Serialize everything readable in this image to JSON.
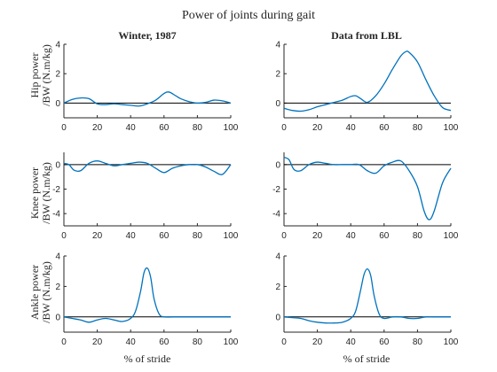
{
  "title": "Power of joints during gait",
  "columns": [
    "Winter, 1987",
    "Data from LBL"
  ],
  "ylabels": [
    [
      "Hip power",
      "/BW (N.m/kg)"
    ],
    [
      "Knee power",
      "/BW (N.m/kg)"
    ],
    [
      "Ankle power",
      "/BW (N.m/kg)"
    ]
  ],
  "xlabel": "% of stride",
  "colors": {
    "line": "#0072BD",
    "axis": "#262626",
    "zero_line": "#000000"
  },
  "chart_data": [
    {
      "type": "line",
      "title": "Winter, 1987",
      "ylabel": "Hip power /BW (N.m/kg)",
      "xlabel": "",
      "xlim": [
        0,
        100
      ],
      "ylim": [
        -1,
        4
      ],
      "yticks": [
        0,
        2,
        4
      ],
      "xticks": [
        0,
        20,
        40,
        60,
        80,
        100
      ],
      "zero_line": true,
      "series": [
        {
          "x": [
            0,
            5,
            10,
            15,
            20,
            25,
            30,
            35,
            40,
            45,
            50,
            55,
            60,
            63,
            67,
            70,
            75,
            80,
            85,
            90,
            95,
            100
          ],
          "y": [
            0,
            0.25,
            0.35,
            0.3,
            -0.05,
            -0.1,
            -0.05,
            -0.1,
            -0.15,
            -0.2,
            -0.05,
            0.2,
            0.65,
            0.75,
            0.5,
            0.3,
            0.1,
            0,
            0.05,
            0.2,
            0.15,
            0
          ]
        }
      ]
    },
    {
      "type": "line",
      "title": "Data from LBL",
      "ylabel": "",
      "xlabel": "",
      "xlim": [
        0,
        100
      ],
      "ylim": [
        -1,
        4
      ],
      "yticks": [
        0,
        2,
        4
      ],
      "xticks": [
        0,
        20,
        40,
        60,
        80,
        100
      ],
      "zero_line": true,
      "series": [
        {
          "x": [
            0,
            5,
            10,
            15,
            20,
            25,
            30,
            35,
            40,
            43,
            46,
            50,
            55,
            60,
            65,
            70,
            73,
            75,
            80,
            85,
            90,
            95,
            100
          ],
          "y": [
            -0.35,
            -0.5,
            -0.55,
            -0.45,
            -0.25,
            -0.1,
            0.05,
            0.2,
            0.45,
            0.5,
            0.3,
            0.05,
            0.5,
            1.3,
            2.3,
            3.2,
            3.5,
            3.45,
            2.8,
            1.6,
            0.5,
            -0.3,
            -0.5
          ]
        }
      ]
    },
    {
      "type": "line",
      "title": "",
      "ylabel": "Knee power /BW (N.m/kg)",
      "xlabel": "",
      "xlim": [
        0,
        100
      ],
      "ylim": [
        -5,
        1
      ],
      "yticks": [
        -4,
        -2,
        0
      ],
      "xticks": [
        0,
        20,
        40,
        60,
        80,
        100
      ],
      "zero_line": true,
      "series": [
        {
          "x": [
            0,
            3,
            6,
            10,
            15,
            20,
            25,
            30,
            35,
            40,
            45,
            50,
            55,
            60,
            65,
            70,
            75,
            80,
            85,
            90,
            95,
            100
          ],
          "y": [
            0.1,
            0,
            -0.45,
            -0.5,
            0.1,
            0.3,
            0.1,
            -0.1,
            0,
            0.1,
            0.2,
            0.1,
            -0.3,
            -0.65,
            -0.3,
            -0.1,
            0,
            0,
            -0.2,
            -0.55,
            -0.8,
            0
          ]
        }
      ]
    },
    {
      "type": "line",
      "title": "",
      "ylabel": "",
      "xlabel": "",
      "xlim": [
        0,
        100
      ],
      "ylim": [
        -5,
        1
      ],
      "yticks": [
        -4,
        -2,
        0
      ],
      "xticks": [
        0,
        20,
        40,
        60,
        80,
        100
      ],
      "zero_line": true,
      "series": [
        {
          "x": [
            0,
            3,
            6,
            10,
            15,
            20,
            25,
            30,
            35,
            40,
            45,
            50,
            55,
            60,
            65,
            70,
            75,
            80,
            84,
            87,
            90,
            95,
            100
          ],
          "y": [
            0.6,
            0.4,
            -0.4,
            -0.5,
            0,
            0.2,
            0.1,
            0,
            0,
            0,
            0,
            -0.5,
            -0.7,
            -0.1,
            0.2,
            0.3,
            -0.5,
            -1.8,
            -3.8,
            -4.5,
            -3.8,
            -1.5,
            -0.3
          ]
        }
      ]
    },
    {
      "type": "line",
      "title": "",
      "ylabel": "Ankle power /BW (N.m/kg)",
      "xlabel": "% of stride",
      "xlim": [
        0,
        100
      ],
      "ylim": [
        -1,
        4
      ],
      "yticks": [
        0,
        2,
        4
      ],
      "xticks": [
        0,
        20,
        40,
        60,
        80,
        100
      ],
      "zero_line": true,
      "series": [
        {
          "x": [
            0,
            5,
            10,
            15,
            20,
            25,
            30,
            35,
            40,
            43,
            46,
            48,
            50,
            52,
            54,
            57,
            60,
            65,
            70,
            80,
            90,
            100
          ],
          "y": [
            0,
            -0.1,
            -0.2,
            -0.35,
            -0.2,
            -0.1,
            -0.2,
            -0.3,
            -0.1,
            0.4,
            1.7,
            2.9,
            3.2,
            2.6,
            1.2,
            0.2,
            0,
            0,
            0,
            0,
            0,
            0
          ]
        }
      ]
    },
    {
      "type": "line",
      "title": "",
      "ylabel": "",
      "xlabel": "% of stride",
      "xlim": [
        0,
        100
      ],
      "ylim": [
        -1,
        4
      ],
      "yticks": [
        0,
        2,
        4
      ],
      "xticks": [
        0,
        20,
        40,
        60,
        80,
        100
      ],
      "zero_line": true,
      "series": [
        {
          "x": [
            0,
            5,
            10,
            15,
            20,
            25,
            30,
            35,
            40,
            43,
            46,
            48,
            50,
            52,
            54,
            57,
            60,
            65,
            70,
            75,
            80,
            85,
            90,
            100
          ],
          "y": [
            0,
            -0.05,
            -0.1,
            -0.25,
            -0.35,
            -0.4,
            -0.4,
            -0.35,
            -0.1,
            0.4,
            1.8,
            2.8,
            3.15,
            2.7,
            1.4,
            0.2,
            -0.1,
            0,
            0,
            -0.1,
            -0.1,
            0,
            0,
            0
          ]
        }
      ]
    }
  ]
}
